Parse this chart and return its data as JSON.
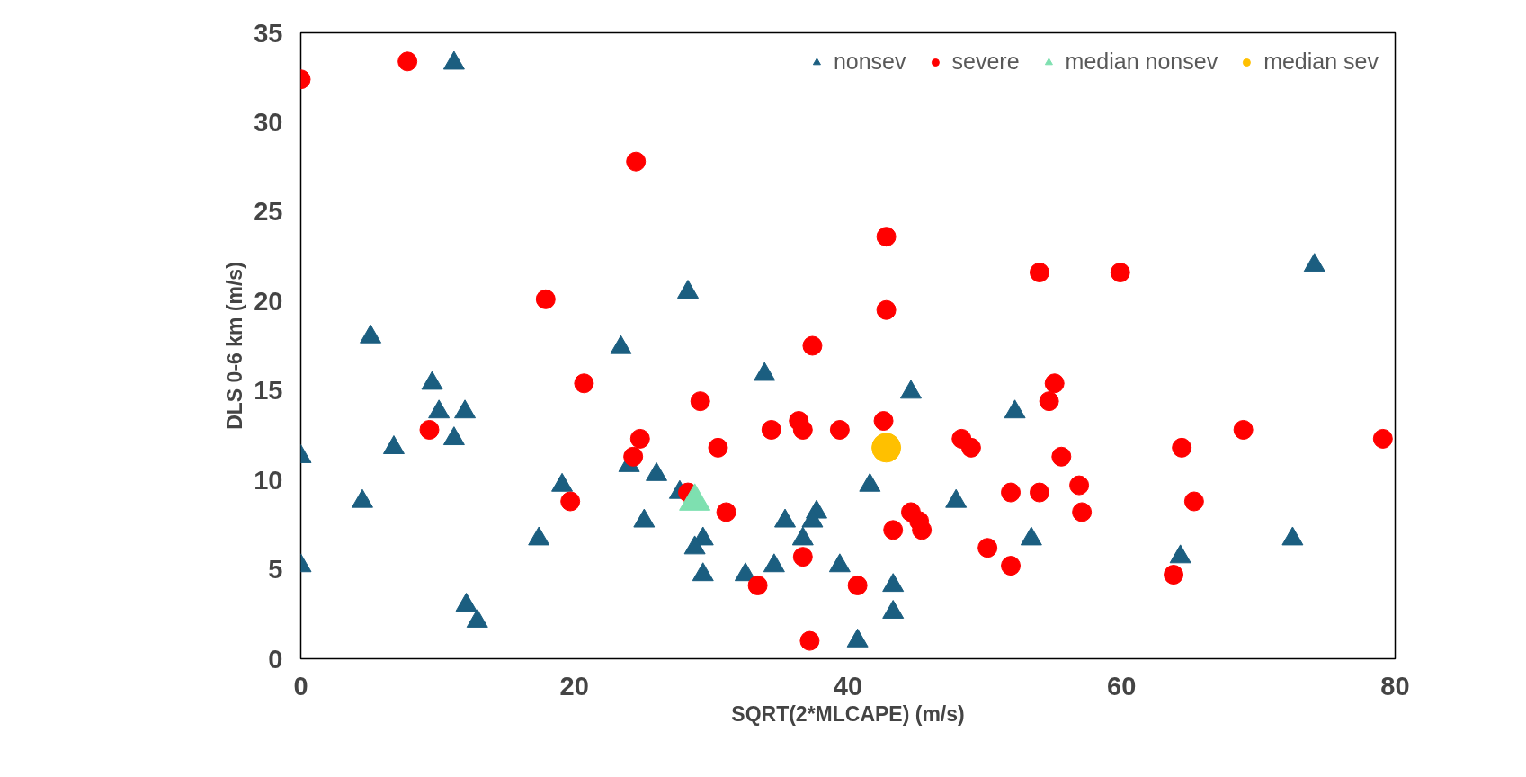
{
  "chart_data": {
    "type": "scatter",
    "xlabel": "SQRT(2*MLCAPE) (m/s)",
    "ylabel": "DLS 0-6 km (m/s)",
    "xlim": [
      0,
      80
    ],
    "ylim": [
      0,
      35
    ],
    "xticks": [
      0,
      20,
      40,
      60,
      80
    ],
    "yticks": [
      0,
      5,
      10,
      15,
      20,
      25,
      30,
      35
    ],
    "grid": false,
    "legend": "top right",
    "series": [
      {
        "name": "nonsev",
        "color": "#1b5e80",
        "marker": "triangle",
        "x": [
          11.2,
          74.1,
          28.3,
          5.1,
          23.4,
          33.9,
          9.6,
          44.6,
          10.1,
          12.0,
          52.2,
          11.2,
          0,
          6.8,
          24.0,
          26.0,
          19.1,
          41.6,
          27.7,
          4.5,
          47.9,
          37.7,
          35.4,
          25.1,
          37.4,
          17.4,
          29.4,
          36.7,
          53.4,
          72.5,
          28.8,
          64.3,
          0,
          34.6,
          39.4,
          29.4,
          32.5,
          43.3,
          12.1,
          12.9,
          43.3,
          40.7
        ],
        "values": [
          33.3,
          22.0,
          20.5,
          18.0,
          17.4,
          15.9,
          15.4,
          14.9,
          13.8,
          13.8,
          13.8,
          12.3,
          11.3,
          11.8,
          10.8,
          10.3,
          9.7,
          9.7,
          9.3,
          8.8,
          8.8,
          8.2,
          7.7,
          7.7,
          7.7,
          6.7,
          6.7,
          6.7,
          6.7,
          6.7,
          6.2,
          5.7,
          5.2,
          5.2,
          5.2,
          4.7,
          4.7,
          4.1,
          3.0,
          2.1,
          2.6,
          1.0
        ]
      },
      {
        "name": "severe",
        "color": "#ff0000",
        "marker": "circle",
        "x": [
          0,
          7.8,
          24.5,
          42.8,
          54.0,
          59.9,
          17.9,
          42.8,
          37.4,
          20.7,
          55.1,
          29.2,
          54.7,
          36.4,
          42.6,
          9.4,
          34.4,
          36.7,
          39.4,
          68.9,
          24.8,
          48.3,
          79.1,
          30.5,
          49.0,
          64.4,
          24.3,
          55.6,
          56.9,
          28.3,
          51.9,
          54.0,
          19.7,
          65.3,
          31.1,
          44.6,
          57.1,
          45.2,
          43.3,
          45.4,
          50.2,
          36.7,
          51.9,
          33.4,
          40.7,
          63.8,
          37.2
        ],
        "values": [
          32.4,
          33.4,
          27.8,
          23.6,
          21.6,
          21.6,
          20.1,
          19.5,
          17.5,
          15.4,
          15.4,
          14.4,
          14.4,
          13.3,
          13.3,
          12.8,
          12.8,
          12.8,
          12.8,
          12.8,
          12.3,
          12.3,
          12.3,
          11.8,
          11.8,
          11.8,
          11.3,
          11.3,
          9.7,
          9.3,
          9.3,
          9.3,
          8.8,
          8.8,
          8.2,
          8.2,
          8.2,
          7.7,
          7.2,
          7.2,
          6.2,
          5.7,
          5.2,
          4.1,
          4.1,
          4.7,
          1.0
        ]
      },
      {
        "name": "median nonsev",
        "color": "#7ee0b0",
        "marker": "triangle",
        "x": [
          28.8
        ],
        "values": [
          8.8
        ]
      },
      {
        "name": "median sev",
        "color": "#ffc000",
        "marker": "circle",
        "x": [
          42.8
        ],
        "values": [
          11.8
        ]
      }
    ]
  }
}
